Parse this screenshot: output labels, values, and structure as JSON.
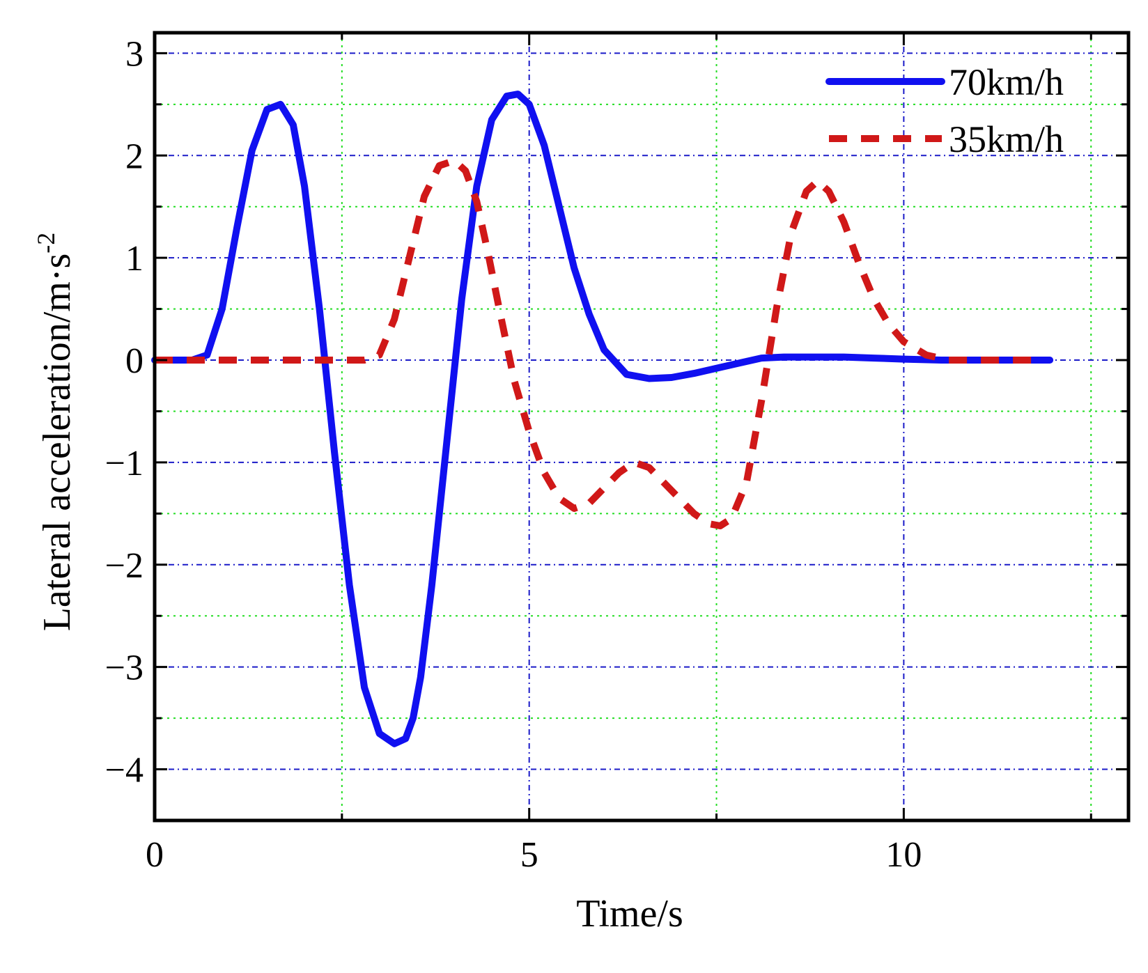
{
  "chart_data": {
    "type": "line",
    "title": "",
    "xlabel": "Time/s",
    "ylabel_main": "Lateral acceleration/m·s",
    "ylabel_sup": "-2",
    "xlim": [
      0,
      13
    ],
    "ylim": [
      -4.5,
      3.2
    ],
    "x_ticks": [
      {
        "value": 0,
        "label": "0"
      },
      {
        "value": 5,
        "label": "5"
      },
      {
        "value": 10,
        "label": "10"
      }
    ],
    "y_ticks": [
      {
        "value": 3,
        "label": "3"
      },
      {
        "value": 2,
        "label": "2"
      },
      {
        "value": 1,
        "label": "1"
      },
      {
        "value": 0,
        "label": "0"
      },
      {
        "value": -1,
        "label": "−1"
      },
      {
        "value": -2,
        "label": "−2"
      },
      {
        "value": -3,
        "label": "−3"
      },
      {
        "value": -4,
        "label": "−4"
      }
    ],
    "grid_major_x": [
      5,
      10
    ],
    "grid_minor_x": [
      2.5,
      7.5,
      12.5
    ],
    "grid_major_y": [
      3,
      2,
      1,
      0,
      -1,
      -2,
      -3,
      -4
    ],
    "grid_minor_y": [
      2.5,
      1.5,
      0.5,
      -0.5,
      -1.5,
      -2.5,
      -3.5
    ],
    "grid": true,
    "legend_position": "top-right",
    "colors": {
      "grid_major": "#1a1ac8",
      "grid_minor": "#22dd22",
      "axes": "#000000"
    },
    "series": [
      {
        "name": "70km/h",
        "style": "solid",
        "color": "#1010f0",
        "x": [
          0,
          0.5,
          0.7,
          0.9,
          1.1,
          1.3,
          1.5,
          1.68,
          1.85,
          2.0,
          2.2,
          2.4,
          2.6,
          2.8,
          3.0,
          3.2,
          3.35,
          3.45,
          3.55,
          3.7,
          3.9,
          4.1,
          4.3,
          4.5,
          4.7,
          4.85,
          5.0,
          5.2,
          5.4,
          5.6,
          5.8,
          6.0,
          6.3,
          6.6,
          6.9,
          7.2,
          7.5,
          7.8,
          8.1,
          8.4,
          8.8,
          9.2,
          9.6,
          10.0,
          10.5,
          11.0,
          11.5,
          11.95
        ],
        "values": [
          0,
          0,
          0.05,
          0.5,
          1.3,
          2.05,
          2.45,
          2.5,
          2.3,
          1.7,
          0.5,
          -0.9,
          -2.2,
          -3.2,
          -3.65,
          -3.75,
          -3.7,
          -3.5,
          -3.1,
          -2.2,
          -0.8,
          0.6,
          1.7,
          2.35,
          2.58,
          2.6,
          2.5,
          2.1,
          1.5,
          0.9,
          0.45,
          0.1,
          -0.14,
          -0.18,
          -0.17,
          -0.13,
          -0.08,
          -0.03,
          0.02,
          0.03,
          0.03,
          0.03,
          0.02,
          0.01,
          0.0,
          0.0,
          0.0,
          0.0
        ]
      },
      {
        "name": "35km/h",
        "style": "dashed",
        "color": "#d01818",
        "x": [
          0,
          1.0,
          2.0,
          2.8,
          3.0,
          3.2,
          3.4,
          3.6,
          3.8,
          4.0,
          4.15,
          4.3,
          4.45,
          4.6,
          4.8,
          5.0,
          5.2,
          5.4,
          5.6,
          5.8,
          6.0,
          6.2,
          6.4,
          6.6,
          6.8,
          7.0,
          7.2,
          7.4,
          7.55,
          7.7,
          7.9,
          8.1,
          8.3,
          8.5,
          8.7,
          8.85,
          9.0,
          9.2,
          9.4,
          9.6,
          9.8,
          10.0,
          10.3,
          10.6,
          11.0,
          11.5,
          11.7
        ],
        "values": [
          0,
          0,
          0,
          0,
          0.05,
          0.4,
          1.0,
          1.6,
          1.9,
          1.95,
          1.85,
          1.55,
          1.05,
          0.5,
          -0.2,
          -0.7,
          -1.1,
          -1.35,
          -1.45,
          -1.4,
          -1.25,
          -1.1,
          -1.0,
          -1.05,
          -1.2,
          -1.35,
          -1.5,
          -1.6,
          -1.62,
          -1.55,
          -1.2,
          -0.4,
          0.5,
          1.25,
          1.65,
          1.75,
          1.65,
          1.35,
          0.95,
          0.6,
          0.35,
          0.18,
          0.05,
          0.0,
          0.0,
          0.0,
          0.0
        ]
      }
    ]
  }
}
